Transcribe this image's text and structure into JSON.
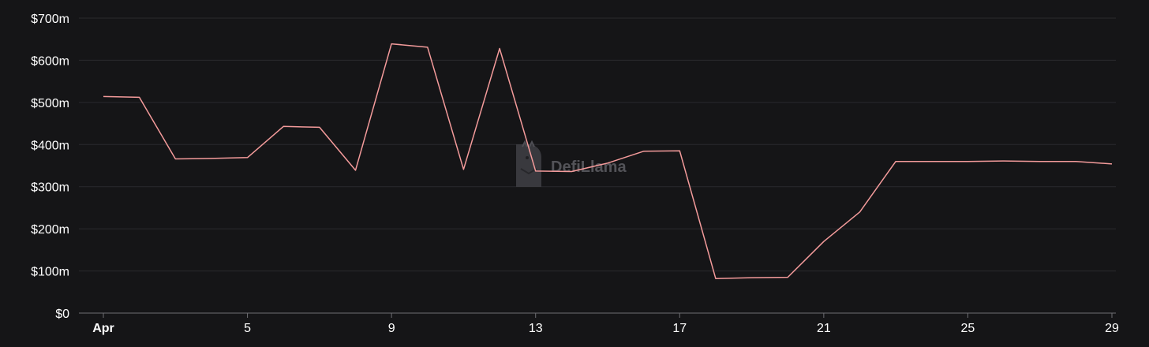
{
  "watermark": {
    "text": "DefiLlama",
    "icon": "llama-logo-icon"
  },
  "colors": {
    "background": "#151517",
    "line": "#f49b9b",
    "grid": "#2a2a2e",
    "text": "#ffffff"
  },
  "chart_data": {
    "type": "line",
    "title": "",
    "xlabel": "",
    "ylabel": "",
    "grid": true,
    "ylim": [
      0,
      700
    ],
    "yticks": [
      0,
      100,
      200,
      300,
      400,
      500,
      600,
      700
    ],
    "ytick_labels": [
      "$0",
      "$100m",
      "$200m",
      "$300m",
      "$400m",
      "$500m",
      "$600m",
      "$700m"
    ],
    "xlim": [
      "Apr 1",
      "Apr 29"
    ],
    "xticks": [
      "Apr 1",
      "Apr 5",
      "Apr 9",
      "Apr 13",
      "Apr 17",
      "Apr 21",
      "Apr 25",
      "Apr 29"
    ],
    "xtick_labels": [
      "Apr",
      "5",
      "9",
      "13",
      "17",
      "21",
      "25",
      "29"
    ],
    "series": [
      {
        "unit": "$m",
        "x": [
          "Apr 1",
          "Apr 2",
          "Apr 3",
          "Apr 4",
          "Apr 5",
          "Apr 6",
          "Apr 7",
          "Apr 8",
          "Apr 9",
          "Apr 10",
          "Apr 11",
          "Apr 12",
          "Apr 13",
          "Apr 14",
          "Apr 15",
          "Apr 16",
          "Apr 17",
          "Apr 18",
          "Apr 19",
          "Apr 20",
          "Apr 21",
          "Apr 22",
          "Apr 23",
          "Apr 24",
          "Apr 25",
          "Apr 26",
          "Apr 27",
          "Apr 28",
          "Apr 29"
        ],
        "values": [
          514,
          512,
          366,
          367,
          369,
          443,
          441,
          339,
          639,
          631,
          341,
          628,
          337,
          336,
          356,
          384,
          385,
          82,
          84,
          85,
          170,
          240,
          360,
          360,
          360,
          361,
          360,
          360,
          354
        ]
      }
    ]
  }
}
